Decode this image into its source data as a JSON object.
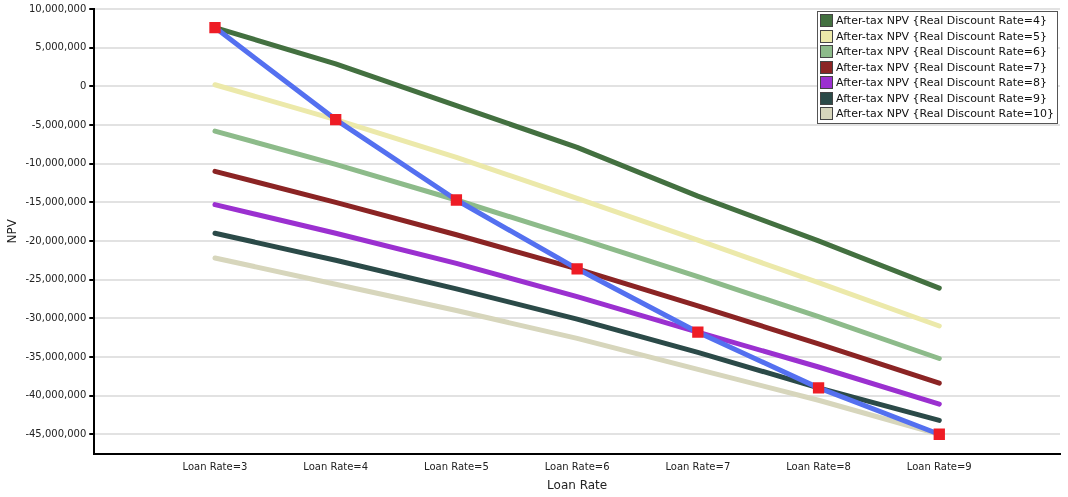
{
  "chart_data": {
    "type": "line",
    "xlabel": "Loan Rate",
    "ylabel": "NPV",
    "categories": [
      "Loan Rate=3",
      "Loan Rate=4",
      "Loan Rate=5",
      "Loan Rate=6",
      "Loan Rate=7",
      "Loan Rate=8",
      "Loan Rate=9"
    ],
    "series": [
      {
        "name": "After-tax NPV {Real Discount Rate=4}",
        "color": "#437040",
        "values": [
          7600000,
          2900000,
          -2500000,
          -7900000,
          -14200000,
          -20000000,
          -26100000
        ]
      },
      {
        "name": "After-tax NPV {Real Discount Rate=5}",
        "color": "#ece9aa",
        "values": [
          200000,
          -4300000,
          -9200000,
          -14500000,
          -19900000,
          -25400000,
          -31000000
        ]
      },
      {
        "name": "After-tax NPV {Real Discount Rate=6}",
        "color": "#8dbb8a",
        "values": [
          -5800000,
          -10100000,
          -14700000,
          -19600000,
          -24600000,
          -29800000,
          -35200000
        ]
      },
      {
        "name": "After-tax NPV {Real Discount Rate=7}",
        "color": "#8b2424",
        "values": [
          -11000000,
          -15000000,
          -19200000,
          -23600000,
          -28400000,
          -33300000,
          -38400000
        ]
      },
      {
        "name": "After-tax NPV {Real Discount Rate=8}",
        "color": "#9b30d0",
        "values": [
          -15300000,
          -19000000,
          -22900000,
          -27200000,
          -31800000,
          -36300000,
          -41100000
        ]
      },
      {
        "name": "After-tax NPV {Real Discount Rate=9}",
        "color": "#2b4a48",
        "values": [
          -19000000,
          -22500000,
          -26200000,
          -30100000,
          -34400000,
          -39000000,
          -43200000
        ]
      },
      {
        "name": "After-tax NPV {Real Discount Rate=10}",
        "color": "#d7d6bc",
        "values": [
          -22200000,
          -25600000,
          -29000000,
          -32600000,
          -36600000,
          -40600000,
          -45000000
        ]
      },
      {
        "type": "line",
        "color": "#5470f0",
        "marker": "none",
        "values": [
          7600000,
          -4300000,
          -14700000,
          -23600000,
          -31800000,
          -39000000,
          -45000000
        ]
      },
      {
        "type": "scatter",
        "color": "#ee1c25",
        "marker": "square",
        "values": [
          7600000,
          -4300000,
          -14700000,
          -23600000,
          -31800000,
          -39000000,
          -45000000
        ]
      }
    ],
    "ylim": [
      -47500000,
      10000000
    ],
    "yticks": [
      {
        "value": 10000000,
        "label": "10,000,000"
      },
      {
        "value": 5000000,
        "label": "5,000,000"
      },
      0,
      {
        "value": -5000000,
        "label": "-5,000,000"
      },
      {
        "value": -10000000,
        "label": "-10,000,000"
      },
      {
        "value": -15000000,
        "label": "-15,000,000"
      },
      {
        "value": -20000000,
        "label": "-20,000,000"
      },
      {
        "value": -25000000,
        "label": "-25,000,000"
      },
      {
        "value": -30000000,
        "label": "-30,000,000"
      },
      {
        "value": -35000000,
        "label": "-35,000,000"
      },
      {
        "value": -40000000,
        "label": "-40,000,000"
      },
      {
        "value": -45000000,
        "label": "-45,000,000"
      }
    ],
    "grid": "y",
    "legend": "top right",
    "marker": "none"
  }
}
